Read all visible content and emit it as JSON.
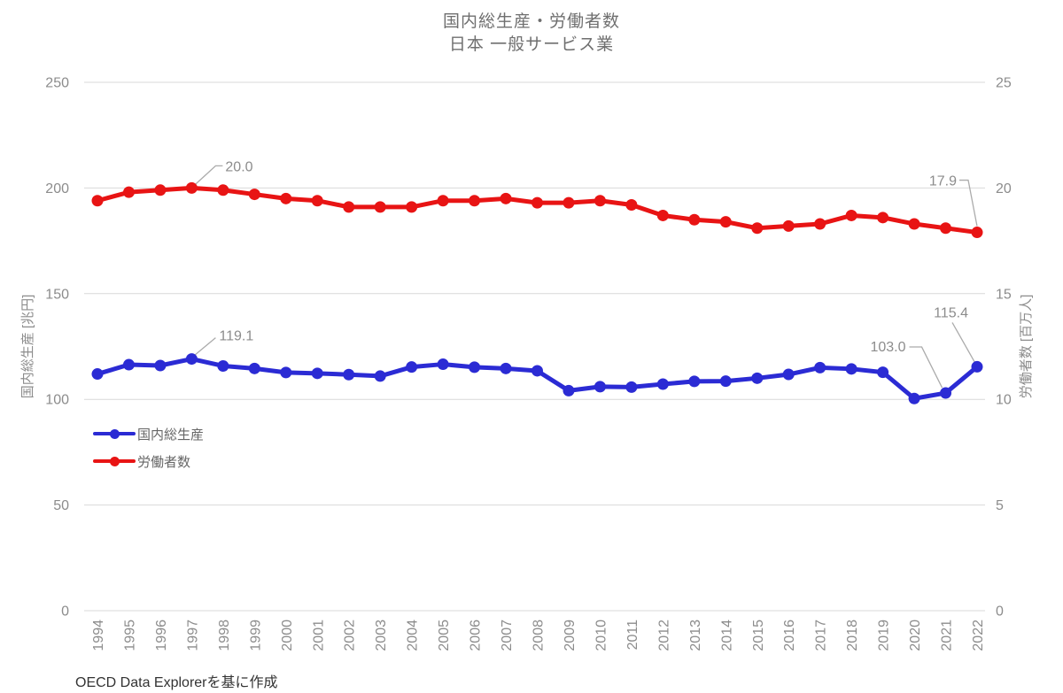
{
  "page": {
    "source_note": "OECD Data Explorerを基に作成"
  },
  "chart_data": {
    "type": "line",
    "title": "国内総生産・労働者数",
    "subtitle": "日本 一般サービス業",
    "grid": true,
    "legend_position": "inside-left-middle",
    "x": [
      "1994",
      "1995",
      "1996",
      "1997",
      "1998",
      "1999",
      "2000",
      "2001",
      "2002",
      "2003",
      "2004",
      "2005",
      "2006",
      "2007",
      "2008",
      "2009",
      "2010",
      "2011",
      "2012",
      "2013",
      "2014",
      "2015",
      "2016",
      "2017",
      "2018",
      "2019",
      "2020",
      "2021",
      "2022"
    ],
    "series": [
      {
        "name": "国内総生産",
        "axis": "left",
        "color": "#2b2bd4",
        "values": [
          112.0,
          116.4,
          116.0,
          119.1,
          115.8,
          114.6,
          112.7,
          112.3,
          111.7,
          111.0,
          115.3,
          116.6,
          115.2,
          114.6,
          113.5,
          104.1,
          106.0,
          105.8,
          107.2,
          108.5,
          108.6,
          110.0,
          111.8,
          115.0,
          114.4,
          112.8,
          100.4,
          103.0,
          115.4
        ]
      },
      {
        "name": "労働者数",
        "axis": "right",
        "color": "#e81414",
        "values": [
          19.4,
          19.8,
          19.9,
          20.0,
          19.9,
          19.7,
          19.5,
          19.4,
          19.1,
          19.1,
          19.1,
          19.4,
          19.4,
          19.5,
          19.3,
          19.3,
          19.4,
          19.2,
          18.7,
          18.5,
          18.4,
          18.1,
          18.2,
          18.3,
          18.7,
          18.6,
          18.3,
          18.1,
          17.9
        ]
      }
    ],
    "left_axis": {
      "label": "国内総生産 [兆円]",
      "min": 0,
      "max": 250,
      "ticks": [
        0,
        50,
        100,
        150,
        200,
        250
      ]
    },
    "right_axis": {
      "label": "労働者数 [百万人]",
      "min": 0,
      "max": 25,
      "ticks": [
        0,
        5,
        10,
        15,
        20,
        25
      ]
    },
    "annotations": [
      {
        "series_index": 0,
        "year": "1997",
        "text": "119.1",
        "anchor": "start",
        "label_offset": [
          31,
          -21
        ],
        "leader": [
          [
            3,
            -4
          ],
          [
            27,
            -24
          ]
        ]
      },
      {
        "series_index": 0,
        "year": "2021",
        "text": "103.0",
        "anchor": "end",
        "label_offset": [
          -45,
          -47
        ],
        "leader": [
          [
            -41,
            -52
          ],
          [
            -27,
            -52
          ],
          [
            -4,
            -6
          ]
        ]
      },
      {
        "series_index": 0,
        "year": "2022",
        "text": "115.4",
        "anchor": "end",
        "label_offset": [
          -10,
          -56
        ],
        "leader": [
          [
            -28,
            -50
          ],
          [
            -2,
            -4
          ]
        ]
      },
      {
        "series_index": 1,
        "year": "1997",
        "text": "20.0",
        "anchor": "start",
        "label_offset": [
          38,
          -19
        ],
        "leader": [
          [
            3,
            -3
          ],
          [
            27,
            -25
          ],
          [
            35,
            -25
          ]
        ]
      },
      {
        "series_index": 1,
        "year": "2022",
        "text": "17.9",
        "anchor": "end",
        "label_offset": [
          -23,
          -53
        ],
        "leader": [
          [
            -20,
            -59
          ],
          [
            -10,
            -59
          ],
          [
            0,
            -7
          ]
        ]
      }
    ],
    "style": {
      "grid_color": "#d9d9d9",
      "tick_color": "#8c8c8c",
      "axis_title_color": "#8c8c8c",
      "annotation_text_color": "#8c8c8c",
      "leader_color": "#ababab"
    }
  }
}
